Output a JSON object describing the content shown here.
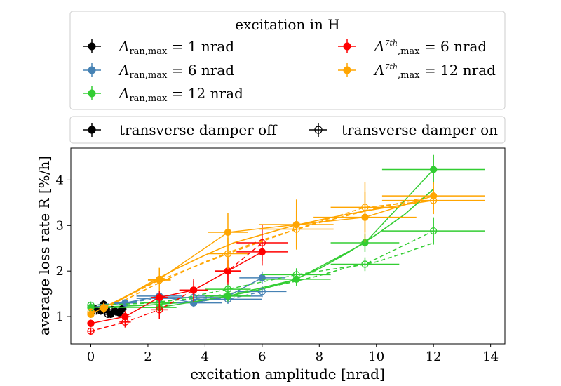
{
  "chart_data": {
    "type": "scatter",
    "xlabel": "excitation amplitude [nrad]",
    "ylabel": "average loss rate R [%/h]",
    "xlim": [
      -0.7,
      14.5
    ],
    "ylim": [
      0.4,
      4.7
    ],
    "xticks": [
      0,
      2,
      4,
      6,
      8,
      10,
      12,
      14
    ],
    "yticks": [
      1,
      2,
      3,
      4
    ],
    "legend_title": "excitation in H",
    "legend_entries": [
      {
        "id": "ran1",
        "prefix": "A",
        "sub": "ran,max",
        "sup": "",
        "value_text": " = 1 nrad",
        "color": "#000000"
      },
      {
        "id": "ran6",
        "prefix": "A",
        "sub": "ran,max",
        "sup": "",
        "value_text": " = 6 nrad",
        "color": "#4682b4"
      },
      {
        "id": "ran12",
        "prefix": "A",
        "sub": "ran,max",
        "sup": "",
        "value_text": " = 12 nrad",
        "color": "#32cd32"
      },
      {
        "id": "h7_6",
        "prefix": "A",
        "sub": ",max",
        "sup": "7th",
        "value_text": " = 6 nrad",
        "color": "#ff0000"
      },
      {
        "id": "h7_12",
        "prefix": "A",
        "sub": ",max",
        "sup": "7th",
        "value_text": " = 12 nrad",
        "color": "#ffa500"
      }
    ],
    "damper_legend": {
      "off_label": "transverse damper off",
      "on_label": "transverse damper on"
    },
    "series": [
      {
        "id": "black_off",
        "color": "#000000",
        "filled": true,
        "linestyle": "solid",
        "points": [
          [
            0.15,
            1.17,
            0.15,
            0.08
          ],
          [
            0.35,
            1.12,
            0.15,
            0.08
          ],
          [
            0.45,
            1.27,
            0.15,
            0.1
          ],
          [
            0.55,
            1.15,
            0.15,
            0.08
          ],
          [
            0.7,
            1.05,
            0.15,
            0.08
          ],
          [
            0.85,
            1.12,
            0.15,
            0.07
          ],
          [
            1.0,
            1.08,
            0.15,
            0.07
          ],
          [
            1.1,
            1.17,
            0.15,
            0.07
          ]
        ]
      },
      {
        "id": "black_on",
        "color": "#000000",
        "filled": false,
        "linestyle": "dashed",
        "points": [
          [
            0.2,
            1.12,
            0.15,
            0.07
          ],
          [
            0.45,
            1.22,
            0.15,
            0.08
          ],
          [
            0.6,
            1.05,
            0.15,
            0.07
          ],
          [
            0.75,
            1.15,
            0.15,
            0.07
          ],
          [
            0.9,
            1.1,
            0.15,
            0.07
          ],
          [
            1.05,
            1.13,
            0.15,
            0.07
          ]
        ]
      },
      {
        "id": "blue_off",
        "color": "#4682b4",
        "filled": true,
        "linestyle": "solid",
        "points": [
          [
            0,
            1.2,
            0.1,
            0.07
          ],
          [
            1.2,
            1.3,
            0.4,
            0.08
          ],
          [
            2.4,
            1.45,
            0.8,
            0.1
          ],
          [
            3.6,
            1.3,
            1.0,
            0.1
          ],
          [
            4.8,
            1.45,
            1.2,
            0.12
          ],
          [
            6.0,
            1.85,
            0.8,
            0.14
          ]
        ]
      },
      {
        "id": "blue_on",
        "color": "#4682b4",
        "filled": false,
        "linestyle": "dashed",
        "points": [
          [
            0,
            1.25,
            0.1,
            0.07
          ],
          [
            1.2,
            1.3,
            0.4,
            0.08
          ],
          [
            2.4,
            1.4,
            0.8,
            0.1
          ],
          [
            3.6,
            1.42,
            1.0,
            0.1
          ],
          [
            4.8,
            1.38,
            1.2,
            0.1
          ],
          [
            6.0,
            1.55,
            0.85,
            0.12
          ]
        ]
      },
      {
        "id": "green_off",
        "color": "#32cd32",
        "filled": true,
        "linestyle": "solid",
        "points": [
          [
            0,
            1.2,
            0.1,
            0.07
          ],
          [
            2.4,
            1.2,
            0.6,
            0.1
          ],
          [
            4.8,
            1.45,
            0.8,
            0.12
          ],
          [
            7.2,
            1.82,
            1.2,
            0.14
          ],
          [
            9.6,
            2.62,
            1.2,
            0.2
          ],
          [
            12.0,
            4.23,
            1.8,
            0.32
          ]
        ]
      },
      {
        "id": "green_on",
        "color": "#32cd32",
        "filled": false,
        "linestyle": "dashed",
        "points": [
          [
            0,
            1.25,
            0.1,
            0.07
          ],
          [
            2.4,
            1.3,
            0.6,
            0.1
          ],
          [
            4.8,
            1.6,
            0.8,
            0.12
          ],
          [
            7.2,
            1.92,
            1.2,
            0.14
          ],
          [
            9.6,
            2.15,
            1.2,
            0.15
          ],
          [
            12.0,
            2.88,
            1.8,
            0.3
          ]
        ]
      },
      {
        "id": "red_off",
        "color": "#ff0000",
        "filled": true,
        "linestyle": "solid",
        "points": [
          [
            0,
            0.85,
            0.1,
            0.08
          ],
          [
            1.2,
            1.0,
            0.2,
            0.12
          ],
          [
            2.4,
            1.42,
            0.3,
            0.15
          ],
          [
            3.6,
            1.58,
            0.5,
            0.25
          ],
          [
            4.8,
            2.0,
            0.45,
            0.3
          ],
          [
            6.0,
            2.42,
            0.9,
            0.3
          ]
        ]
      },
      {
        "id": "red_on",
        "color": "#ff0000",
        "filled": false,
        "linestyle": "dashed",
        "points": [
          [
            0,
            0.68,
            0.1,
            0.08
          ],
          [
            1.2,
            0.88,
            0.2,
            0.12
          ],
          [
            2.4,
            1.15,
            0.3,
            0.2
          ],
          [
            3.6,
            1.58,
            0.5,
            0.2
          ],
          [
            4.8,
            2.0,
            0.45,
            0.25
          ],
          [
            6.0,
            2.62,
            0.9,
            0.4
          ]
        ]
      },
      {
        "id": "orange_off",
        "color": "#ffa500",
        "filled": true,
        "linestyle": "solid",
        "points": [
          [
            0,
            1.05,
            0.1,
            0.08
          ],
          [
            0.45,
            1.2,
            0.15,
            0.1
          ],
          [
            2.4,
            1.82,
            0.4,
            0.25
          ],
          [
            4.8,
            2.85,
            0.7,
            0.42
          ],
          [
            7.2,
            3.02,
            1.3,
            0.55
          ],
          [
            9.6,
            3.18,
            1.8,
            0.55
          ],
          [
            12.0,
            3.65,
            1.8,
            0.3
          ]
        ]
      },
      {
        "id": "orange_on",
        "color": "#ffa500",
        "filled": false,
        "linestyle": "dashed",
        "points": [
          [
            0,
            1.1,
            0.1,
            0.08
          ],
          [
            0.45,
            1.18,
            0.15,
            0.1
          ],
          [
            2.4,
            1.8,
            0.4,
            0.2
          ],
          [
            4.8,
            2.38,
            0.7,
            0.35
          ],
          [
            7.2,
            2.92,
            1.3,
            0.4
          ],
          [
            9.6,
            3.4,
            1.2,
            0.55
          ],
          [
            12.0,
            3.55,
            1.8,
            0.3
          ]
        ]
      }
    ],
    "fit_curves": [
      {
        "id": "fit_orange_off",
        "color": "#ffa500",
        "linestyle": "solid",
        "points": [
          [
            0,
            1.1
          ],
          [
            1,
            1.35
          ],
          [
            2,
            1.72
          ],
          [
            3,
            2.05
          ],
          [
            4,
            2.35
          ],
          [
            5,
            2.62
          ],
          [
            6,
            2.8
          ],
          [
            7,
            2.98
          ],
          [
            8,
            3.12
          ],
          [
            9,
            3.25
          ],
          [
            10,
            3.36
          ],
          [
            11,
            3.46
          ],
          [
            12,
            3.55
          ]
        ]
      },
      {
        "id": "fit_orange_on",
        "color": "#ffa500",
        "linestyle": "dashed",
        "points": [
          [
            0,
            1.1
          ],
          [
            1,
            1.3
          ],
          [
            2,
            1.62
          ],
          [
            3,
            1.92
          ],
          [
            4,
            2.2
          ],
          [
            5,
            2.45
          ],
          [
            6,
            2.68
          ],
          [
            7,
            2.88
          ],
          [
            8,
            3.06
          ],
          [
            9,
            3.22
          ],
          [
            10,
            3.38
          ],
          [
            11,
            3.52
          ],
          [
            12,
            3.65
          ]
        ]
      },
      {
        "id": "fit_green_off",
        "color": "#32cd32",
        "linestyle": "solid",
        "points": [
          [
            0,
            1.2
          ],
          [
            2,
            1.25
          ],
          [
            4,
            1.35
          ],
          [
            6,
            1.6
          ],
          [
            7,
            1.78
          ],
          [
            8,
            2.05
          ],
          [
            9,
            2.4
          ],
          [
            10,
            2.8
          ],
          [
            11,
            3.25
          ],
          [
            12,
            3.8
          ]
        ]
      },
      {
        "id": "fit_green_on",
        "color": "#32cd32",
        "linestyle": "dashed",
        "points": [
          [
            0,
            1.25
          ],
          [
            2,
            1.3
          ],
          [
            4,
            1.42
          ],
          [
            6,
            1.62
          ],
          [
            7,
            1.75
          ],
          [
            8,
            1.9
          ],
          [
            9,
            2.08
          ],
          [
            10,
            2.2
          ],
          [
            11,
            2.4
          ],
          [
            12,
            2.62
          ]
        ]
      }
    ]
  }
}
